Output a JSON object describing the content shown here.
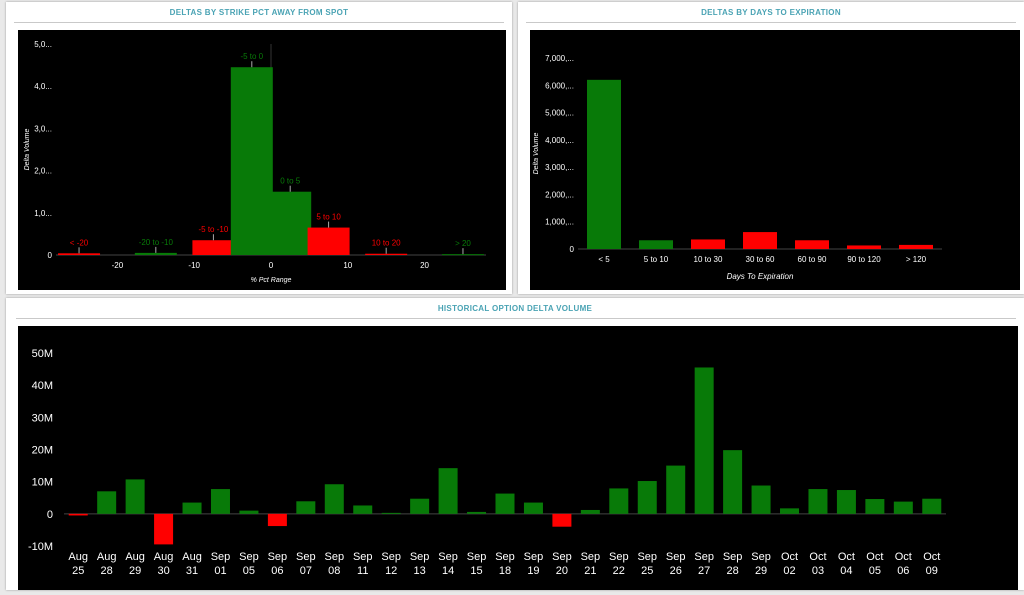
{
  "colors": {
    "positive": "#087a08",
    "negative": "#ff0000",
    "axis_text": "#ffffff",
    "background": "#000000",
    "title": "#4aa3b4"
  },
  "panels": {
    "strike": {
      "title": "DELTAS BY STRIKE PCT AWAY FROM SPOT"
    },
    "expiration": {
      "title": "DELTAS BY DAYS TO EXPIRATION"
    },
    "historical": {
      "title": "HISTORICAL OPTION DELTA VOLUME"
    }
  },
  "chart_data": [
    {
      "id": "strike",
      "type": "bar",
      "title": "DELTAS BY STRIKE PCT AWAY FROM SPOT",
      "xlabel": "% Pct Range",
      "ylabel": "Delta Volume",
      "categories": [
        "< -20",
        "-20 to -10",
        "-5 to -10",
        "-5 to 0",
        "0 to 5",
        "5 to 10",
        "10 to 20",
        "> 20"
      ],
      "x": [
        -25,
        -15,
        -7.5,
        -2.5,
        2.5,
        7.5,
        15,
        25
      ],
      "values": [
        40000,
        50000,
        350000,
        4450000,
        1500000,
        650000,
        30000,
        20000
      ],
      "label_colors": [
        "negative",
        "positive",
        "negative",
        "positive",
        "positive",
        "negative",
        "negative",
        "positive"
      ],
      "bar_colors": [
        "negative",
        "positive",
        "negative",
        "positive",
        "positive",
        "negative",
        "negative",
        "positive"
      ],
      "xticks": [
        "-20",
        "-10",
        "0",
        "10",
        "20"
      ],
      "xtick_values": [
        -20,
        -10,
        0,
        10,
        20
      ],
      "yticks": [
        "0",
        "1,0...",
        "2,0...",
        "3,0...",
        "4,0...",
        "5,0..."
      ],
      "ytick_values": [
        0,
        1000000,
        2000000,
        3000000,
        4000000,
        5000000
      ],
      "ylim": [
        0,
        5000000
      ],
      "grid": false
    },
    {
      "id": "expiration",
      "type": "bar",
      "title": "DELTAS BY DAYS TO EXPIRATION",
      "xlabel": "Days To Expiration",
      "ylabel": "Delta Volume",
      "categories": [
        "< 5",
        "5 to 10",
        "10 to 30",
        "30 to 60",
        "60 to 90",
        "90 to 120",
        "> 120"
      ],
      "values": [
        6200000,
        320000,
        350000,
        620000,
        320000,
        130000,
        150000
      ],
      "bar_colors": [
        "positive",
        "positive",
        "negative",
        "negative",
        "negative",
        "negative",
        "negative"
      ],
      "yticks": [
        "0",
        "1,000,...",
        "2,000,...",
        "3,000,...",
        "4,000,...",
        "5,000,...",
        "6,000,...",
        "7,000,..."
      ],
      "ytick_values": [
        0,
        1000000,
        2000000,
        3000000,
        4000000,
        5000000,
        6000000,
        7000000
      ],
      "ylim": [
        0,
        7000000
      ],
      "grid": false
    },
    {
      "id": "historical",
      "type": "bar",
      "title": "HISTORICAL OPTION DELTA VOLUME",
      "categories": [
        "Aug 25",
        "Aug 28",
        "Aug 29",
        "Aug 30",
        "Aug 31",
        "Sep 01",
        "Sep 05",
        "Sep 06",
        "Sep 07",
        "Sep 08",
        "Sep 11",
        "Sep 12",
        "Sep 13",
        "Sep 14",
        "Sep 15",
        "Sep 18",
        "Sep 19",
        "Sep 20",
        "Sep 21",
        "Sep 22",
        "Sep 25",
        "Sep 26",
        "Sep 27",
        "Sep 28",
        "Sep 29",
        "Oct 02",
        "Oct 03",
        "Oct 04",
        "Oct 05",
        "Oct 06",
        "Oct 09"
      ],
      "values": [
        -0.5,
        7,
        10.7,
        -9.5,
        3.5,
        7.7,
        1,
        -3.8,
        3.9,
        9.2,
        2.6,
        0.3,
        4.7,
        14.2,
        0.6,
        6.3,
        3.5,
        -4,
        1.2,
        7.9,
        10.2,
        15,
        45.5,
        19.8,
        8.8,
        1.7,
        7.7,
        7.4,
        4.6,
        3.8,
        4.7
      ],
      "unit": "M",
      "yticks": [
        "-10M",
        "0",
        "10M",
        "20M",
        "30M",
        "40M",
        "50M"
      ],
      "ytick_values": [
        -10,
        0,
        10,
        20,
        30,
        40,
        50
      ],
      "ylim": [
        -10,
        50
      ],
      "grid": false
    }
  ]
}
